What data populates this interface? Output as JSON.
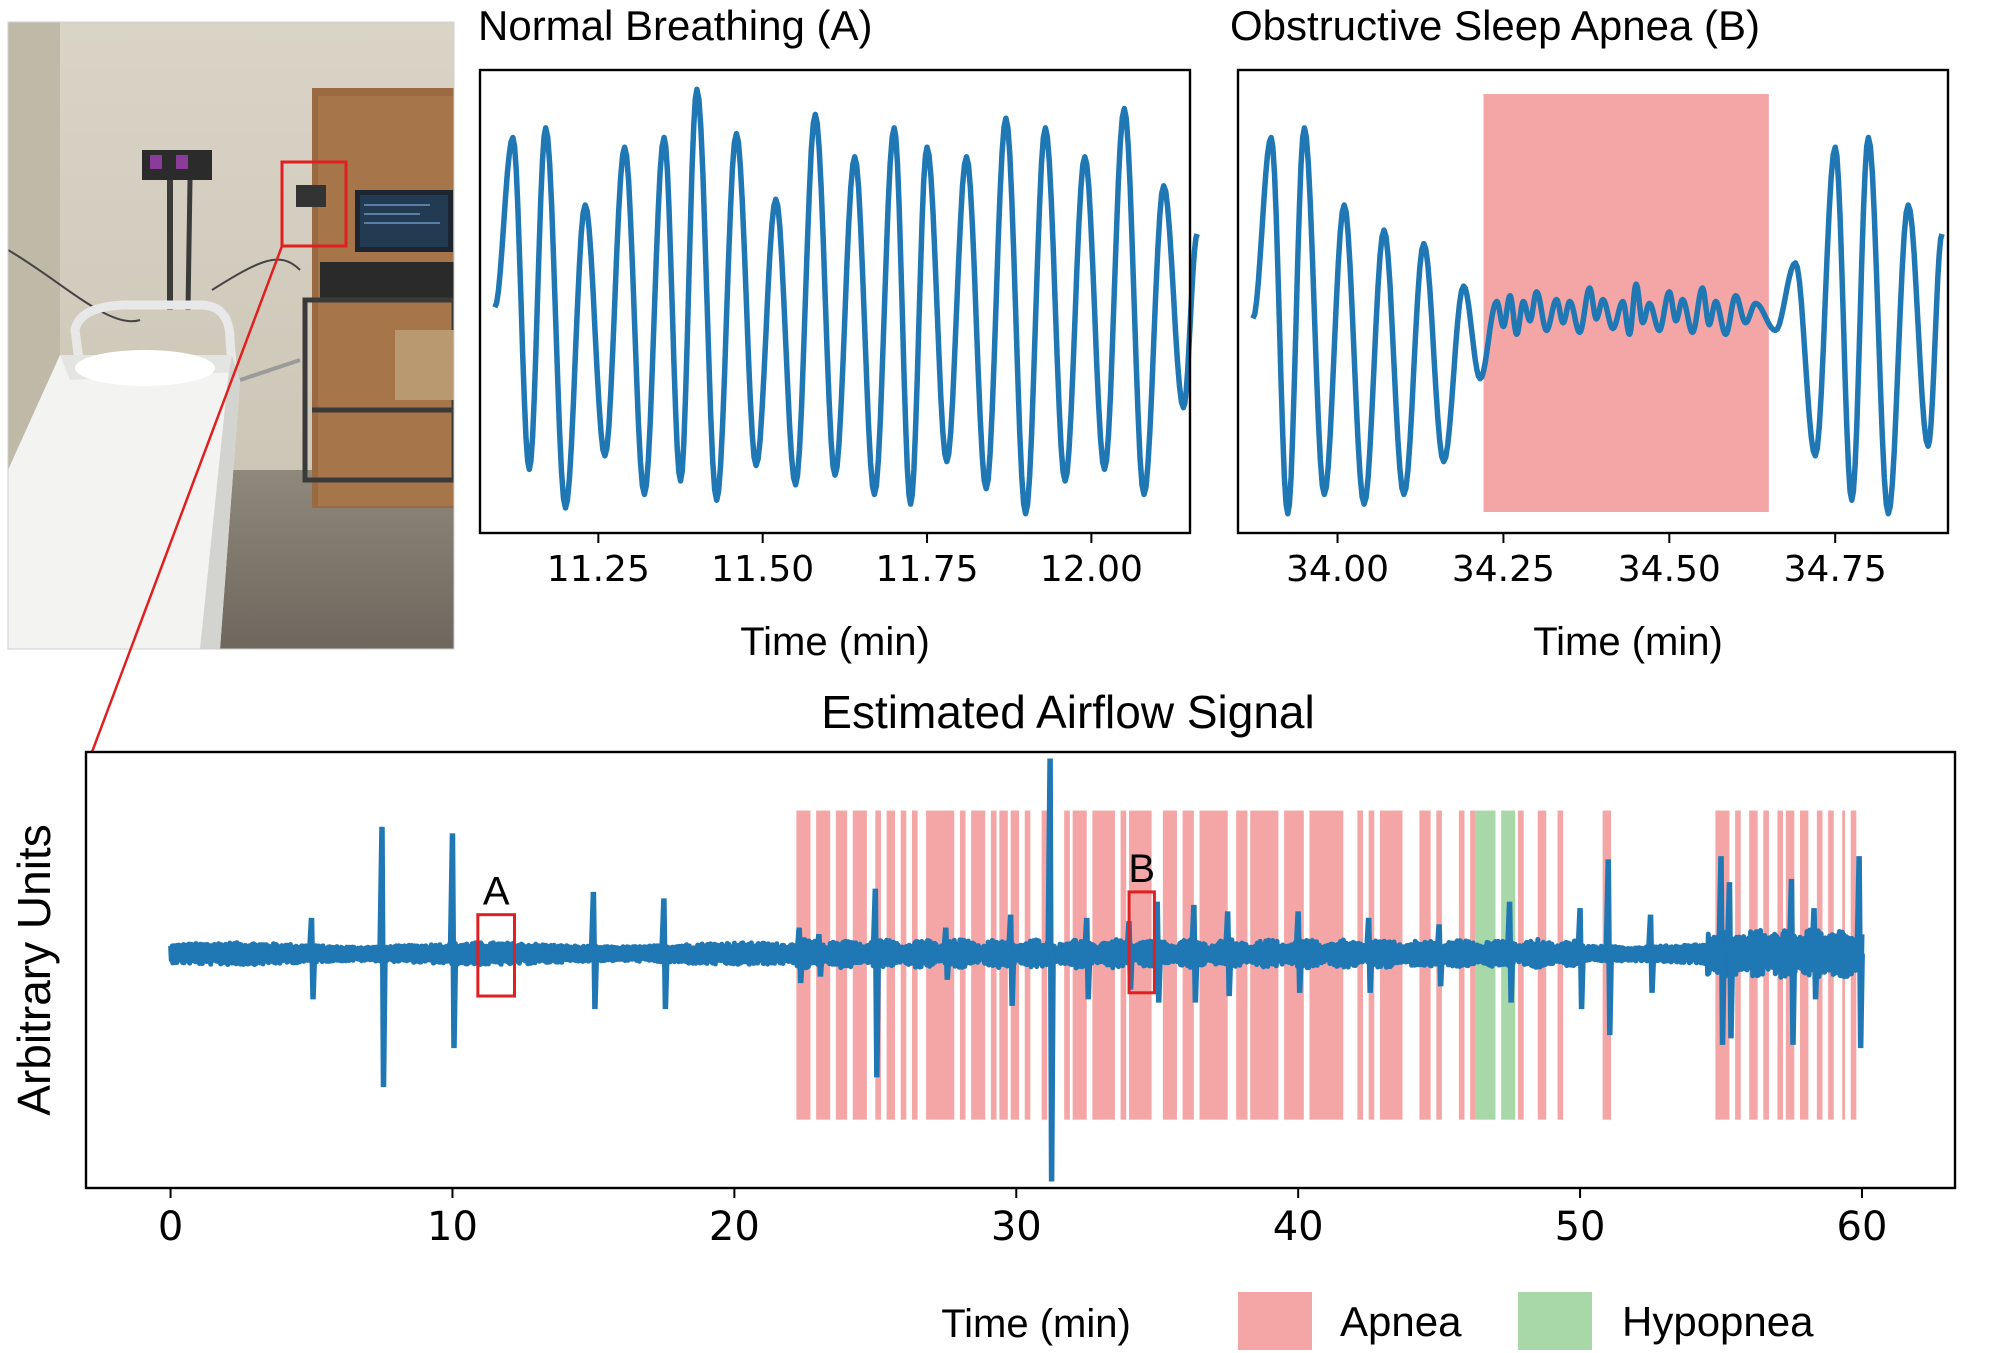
{
  "photo": {
    "scene": "sleep-lab room with bed, camera rig on stand and monitor"
  },
  "colors": {
    "signal": "#1f77b4",
    "apnea": "#f4a6a6",
    "hypopnea": "#a8d8a8",
    "marker": "#e02020",
    "axis": "#000000"
  },
  "chart_data": [
    {
      "type": "line",
      "title": "Normal Breathing (A)",
      "xlabel": "Time (min)",
      "ylabel": "",
      "xlim": [
        11.07,
        12.15
      ],
      "ylim": [
        -1.15,
        1.25
      ],
      "xticks": [
        11.25,
        11.5,
        11.75,
        12.0
      ],
      "xtick_labels": [
        "11.25",
        "11.50",
        "11.75",
        "12.00"
      ],
      "yticks_visible": false,
      "breath_peak_times": [
        11.12,
        11.17,
        11.23,
        11.29,
        11.35,
        11.4,
        11.46,
        11.52,
        11.58,
        11.64,
        11.7,
        11.75,
        11.81,
        11.87,
        11.93,
        11.99,
        12.05,
        12.11
      ],
      "breath_peak_values": [
        0.9,
        0.95,
        0.55,
        0.85,
        0.9,
        1.15,
        0.92,
        0.58,
        1.02,
        0.8,
        0.95,
        0.85,
        0.8,
        1.0,
        0.95,
        0.8,
        1.05,
        0.65
      ],
      "breath_trough_values": [
        -0.82,
        -1.02,
        -0.75,
        -0.95,
        -0.88,
        -0.98,
        -0.8,
        -0.9,
        -0.85,
        -0.95,
        -1.0,
        -0.78,
        -0.92,
        -1.05,
        -0.88,
        -0.82,
        -0.95,
        -0.5
      ]
    },
    {
      "type": "line",
      "title": "Obstructive Sleep Apnea (B)",
      "xlabel": "Time (min)",
      "ylabel": "",
      "xlim": [
        33.85,
        34.92
      ],
      "ylim": [
        -1.15,
        1.25
      ],
      "xticks": [
        34.0,
        34.25,
        34.5,
        34.75
      ],
      "xtick_labels": [
        "34.00",
        "34.25",
        "34.50",
        "34.75"
      ],
      "yticks_visible": false,
      "apnea_region": [
        34.22,
        34.65
      ],
      "breath_peak_times": [
        33.9,
        33.95,
        34.01,
        34.07,
        34.13,
        34.19,
        34.24,
        34.26,
        34.28,
        34.3,
        34.33,
        34.35,
        34.38,
        34.4,
        34.43,
        34.45,
        34.47,
        34.5,
        34.52,
        34.55,
        34.57,
        34.6,
        34.63,
        34.69,
        34.75,
        34.8,
        34.86
      ],
      "breath_peak_values": [
        0.9,
        0.95,
        0.55,
        0.42,
        0.35,
        0.13,
        0.05,
        0.08,
        0.05,
        0.1,
        0.06,
        0.05,
        0.12,
        0.06,
        0.05,
        0.14,
        0.04,
        0.1,
        0.06,
        0.12,
        0.05,
        0.08,
        0.04,
        0.25,
        0.85,
        0.9,
        0.55
      ],
      "breath_trough_values": [
        -1.05,
        -0.95,
        -1.0,
        -0.95,
        -0.78,
        -0.35,
        -0.08,
        -0.12,
        -0.05,
        -0.1,
        -0.06,
        -0.11,
        -0.04,
        -0.09,
        -0.12,
        -0.06,
        -0.1,
        -0.05,
        -0.11,
        -0.07,
        -0.12,
        -0.06,
        -0.1,
        -0.75,
        -0.98,
        -1.05,
        -0.7
      ]
    },
    {
      "type": "line",
      "title": "Estimated Airflow Signal",
      "xlabel": "Time (min)",
      "ylabel": "Arbitrary Units",
      "xlim": [
        -3,
        63.3
      ],
      "ylim": [
        -7.2,
        6.2
      ],
      "xticks": [
        0,
        10,
        20,
        30,
        40,
        50,
        60
      ],
      "xtick_labels": [
        "0",
        "10",
        "20",
        "30",
        "40",
        "50",
        "60"
      ],
      "yticks_visible": false,
      "duration_min": 60,
      "spikes": [
        {
          "t": 5.0,
          "up": 1.1,
          "down": 1.4
        },
        {
          "t": 7.5,
          "up": 3.9,
          "down": 4.1
        },
        {
          "t": 10.0,
          "up": 3.7,
          "down": 2.9
        },
        {
          "t": 15.0,
          "up": 1.9,
          "down": 1.7
        },
        {
          "t": 17.5,
          "up": 1.7,
          "down": 1.7
        },
        {
          "t": 22.3,
          "up": 0.8,
          "down": 0.9
        },
        {
          "t": 23.0,
          "up": 0.6,
          "down": 0.7
        },
        {
          "t": 25.0,
          "up": 2.0,
          "down": 3.8
        },
        {
          "t": 27.5,
          "up": 0.8,
          "down": 0.8
        },
        {
          "t": 29.8,
          "up": 1.2,
          "down": 1.6
        },
        {
          "t": 31.2,
          "up": 6.0,
          "down": 7.0
        },
        {
          "t": 32.5,
          "up": 1.1,
          "down": 1.4
        },
        {
          "t": 34.0,
          "up": 1.0,
          "down": 1.1
        },
        {
          "t": 35.0,
          "up": 1.6,
          "down": 1.5
        },
        {
          "t": 36.3,
          "up": 1.5,
          "down": 1.5
        },
        {
          "t": 37.5,
          "up": 1.3,
          "down": 1.3
        },
        {
          "t": 40.0,
          "up": 1.3,
          "down": 1.2
        },
        {
          "t": 42.5,
          "up": 1.1,
          "down": 1.2
        },
        {
          "t": 45.0,
          "up": 0.9,
          "down": 1.0
        },
        {
          "t": 47.5,
          "up": 1.6,
          "down": 1.5
        },
        {
          "t": 50.0,
          "up": 1.4,
          "down": 1.7
        },
        {
          "t": 51.0,
          "up": 2.9,
          "down": 2.5
        },
        {
          "t": 52.5,
          "up": 1.2,
          "down": 1.2
        },
        {
          "t": 55.0,
          "up": 3.0,
          "down": 2.8
        },
        {
          "t": 55.3,
          "up": 2.2,
          "down": 2.6
        },
        {
          "t": 57.5,
          "up": 2.3,
          "down": 2.8
        },
        {
          "t": 58.3,
          "up": 1.4,
          "down": 1.4
        },
        {
          "t": 59.9,
          "up": 3.0,
          "down": 2.9
        }
      ],
      "apnea_intervals": [
        [
          22.2,
          22.7
        ],
        [
          22.9,
          23.4
        ],
        [
          23.6,
          24.0
        ],
        [
          24.2,
          24.7
        ],
        [
          25.0,
          25.2
        ],
        [
          25.4,
          25.7
        ],
        [
          25.9,
          26.1
        ],
        [
          26.3,
          26.5
        ],
        [
          26.8,
          27.8
        ],
        [
          28.0,
          28.2
        ],
        [
          28.4,
          28.9
        ],
        [
          29.1,
          29.3
        ],
        [
          29.4,
          29.7
        ],
        [
          29.8,
          30.1
        ],
        [
          30.3,
          30.5
        ],
        [
          30.9,
          31.1
        ],
        [
          31.7,
          31.9
        ],
        [
          32.0,
          32.5
        ],
        [
          32.7,
          33.5
        ],
        [
          33.7,
          33.9
        ],
        [
          34.0,
          34.8
        ],
        [
          35.2,
          35.7
        ],
        [
          35.9,
          36.3
        ],
        [
          36.5,
          37.5
        ],
        [
          37.8,
          38.2
        ],
        [
          38.3,
          39.3
        ],
        [
          39.5,
          40.2
        ],
        [
          40.4,
          41.6
        ],
        [
          42.1,
          42.3
        ],
        [
          42.5,
          42.7
        ],
        [
          42.9,
          43.7
        ],
        [
          44.3,
          44.7
        ],
        [
          44.9,
          45.1
        ],
        [
          45.7,
          45.9
        ],
        [
          46.1,
          46.3
        ],
        [
          47.8,
          48.0
        ],
        [
          48.5,
          48.8
        ],
        [
          49.2,
          49.4
        ],
        [
          50.8,
          51.1
        ],
        [
          54.8,
          55.3
        ],
        [
          55.5,
          55.7
        ],
        [
          56.0,
          56.3
        ],
        [
          56.5,
          56.7
        ],
        [
          57.0,
          57.2
        ],
        [
          57.3,
          57.6
        ],
        [
          57.8,
          58.1
        ],
        [
          58.4,
          58.6
        ],
        [
          58.8,
          59.0
        ],
        [
          59.3,
          59.4
        ],
        [
          59.6,
          59.8
        ]
      ],
      "hypopnea_intervals": [
        [
          46.3,
          47.0
        ],
        [
          47.2,
          47.7
        ]
      ],
      "markers": [
        {
          "label": "A",
          "x": [
            10.9,
            12.2
          ],
          "y": [
            -1.3,
            1.2
          ]
        },
        {
          "label": "B",
          "x": [
            34.0,
            34.9
          ],
          "y": [
            -1.2,
            1.9
          ]
        }
      ],
      "legend": {
        "placement": "below",
        "entries": [
          {
            "label": "Apnea",
            "color": "#f4a6a6"
          },
          {
            "label": "Hypopnea",
            "color": "#a8d8a8"
          }
        ]
      }
    }
  ]
}
